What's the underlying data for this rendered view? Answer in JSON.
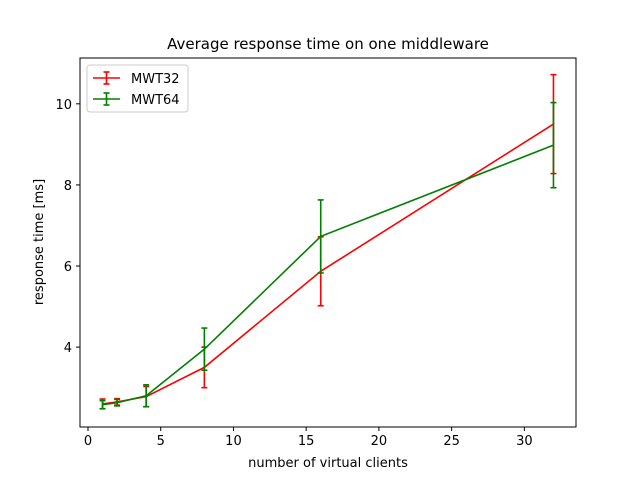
{
  "chart_data": {
    "type": "line",
    "title": "Average response time on one middleware",
    "xlabel": "number of virtual clients",
    "ylabel": "response time [ms]",
    "xlim": [
      -0.55,
      33.55
    ],
    "ylim": [
      2.03,
      11.13
    ],
    "xticks": [
      0,
      5,
      10,
      15,
      20,
      25,
      30
    ],
    "yticks": [
      4,
      6,
      8,
      10
    ],
    "grid": false,
    "legend_position": "top-left",
    "series": [
      {
        "name": "MWT32",
        "color": "#ff0000",
        "x": [
          1,
          2,
          4,
          8,
          16,
          32
        ],
        "y": [
          2.6,
          2.65,
          2.78,
          3.5,
          5.87,
          9.5
        ],
        "err": [
          0.12,
          0.08,
          0.25,
          0.5,
          0.85,
          1.22
        ]
      },
      {
        "name": "MWT64",
        "color": "#008000",
        "x": [
          1,
          2,
          4,
          8,
          16,
          32
        ],
        "y": [
          2.58,
          2.63,
          2.8,
          3.95,
          6.73,
          8.98
        ],
        "err": [
          0.1,
          0.08,
          0.27,
          0.52,
          0.9,
          1.05
        ]
      }
    ]
  }
}
